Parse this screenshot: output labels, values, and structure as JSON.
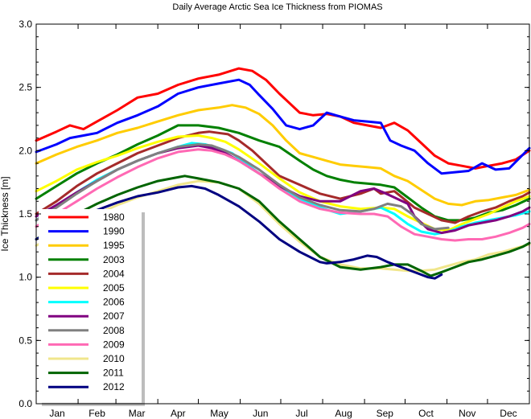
{
  "chart_data": {
    "type": "line",
    "title": "Daily Average Arctic Sea Ice Thickness from PIOMAS",
    "xlabel": "",
    "ylabel": "Ice Thickness  [m]",
    "xlim": [
      0,
      365
    ],
    "ylim": [
      0.0,
      3.0
    ],
    "yticks": [
      0.0,
      0.5,
      1.0,
      1.5,
      2.0,
      2.5,
      3.0
    ],
    "ytick_labels": [
      "0.0",
      "0.5",
      "1.0",
      "1.5",
      "2.0",
      "2.5",
      "3.0"
    ],
    "month_labels": [
      "Jan",
      "Feb",
      "Mar",
      "Apr",
      "May",
      "Jun",
      "Jul",
      "Aug",
      "Sep",
      "Oct",
      "Nov",
      "Dec"
    ],
    "x_unit": "day of year",
    "grid": false,
    "legend_position": "lower-left",
    "series": [
      {
        "name": "1980",
        "color": "#ff0000",
        "x": [
          0,
          15,
          25,
          35,
          45,
          60,
          75,
          90,
          105,
          120,
          135,
          150,
          160,
          170,
          180,
          195,
          205,
          215,
          225,
          235,
          245,
          255,
          265,
          275,
          285,
          295,
          305,
          315,
          325,
          335,
          345,
          355,
          365
        ],
        "y": [
          2.08,
          2.15,
          2.2,
          2.17,
          2.23,
          2.32,
          2.42,
          2.45,
          2.52,
          2.57,
          2.6,
          2.65,
          2.63,
          2.56,
          2.45,
          2.3,
          2.28,
          2.29,
          2.27,
          2.22,
          2.2,
          2.18,
          2.22,
          2.16,
          2.06,
          1.96,
          1.9,
          1.88,
          1.86,
          1.88,
          1.9,
          1.93,
          2.0
        ]
      },
      {
        "name": "1990",
        "color": "#0000ff",
        "x": [
          0,
          15,
          25,
          35,
          45,
          60,
          75,
          90,
          105,
          120,
          135,
          150,
          158,
          165,
          175,
          185,
          195,
          205,
          215,
          225,
          235,
          245,
          255,
          262,
          270,
          280,
          290,
          300,
          310,
          320,
          330,
          340,
          350,
          365
        ],
        "y": [
          1.99,
          2.05,
          2.1,
          2.12,
          2.14,
          2.22,
          2.28,
          2.35,
          2.45,
          2.5,
          2.53,
          2.56,
          2.52,
          2.44,
          2.33,
          2.2,
          2.17,
          2.2,
          2.3,
          2.27,
          2.24,
          2.23,
          2.22,
          2.08,
          2.04,
          2.0,
          1.9,
          1.82,
          1.83,
          1.84,
          1.9,
          1.85,
          1.86,
          2.02
        ]
      },
      {
        "name": "1995",
        "color": "#ffcc00",
        "x": [
          0,
          15,
          30,
          45,
          60,
          75,
          90,
          105,
          120,
          135,
          145,
          155,
          165,
          175,
          185,
          195,
          205,
          215,
          225,
          235,
          245,
          255,
          265,
          275,
          285,
          295,
          305,
          315,
          325,
          335,
          345,
          355,
          365
        ],
        "y": [
          1.9,
          1.97,
          2.03,
          2.08,
          2.14,
          2.18,
          2.23,
          2.28,
          2.32,
          2.34,
          2.36,
          2.34,
          2.29,
          2.2,
          2.08,
          1.98,
          1.95,
          1.92,
          1.89,
          1.88,
          1.87,
          1.86,
          1.8,
          1.76,
          1.69,
          1.62,
          1.58,
          1.57,
          1.6,
          1.61,
          1.63,
          1.65,
          1.69
        ]
      },
      {
        "name": "2003",
        "color": "#008000",
        "x": [
          0,
          15,
          30,
          45,
          60,
          75,
          90,
          105,
          120,
          135,
          150,
          165,
          180,
          195,
          205,
          215,
          225,
          235,
          245,
          255,
          265,
          275,
          285,
          295,
          305,
          315,
          325,
          335,
          345,
          355,
          365
        ],
        "y": [
          1.62,
          1.72,
          1.82,
          1.9,
          1.97,
          2.05,
          2.12,
          2.2,
          2.2,
          2.18,
          2.14,
          2.08,
          2.03,
          1.92,
          1.85,
          1.8,
          1.77,
          1.75,
          1.74,
          1.73,
          1.71,
          1.63,
          1.55,
          1.48,
          1.45,
          1.45,
          1.47,
          1.51,
          1.53,
          1.57,
          1.62
        ]
      },
      {
        "name": "2004",
        "color": "#a52a2a",
        "x": [
          0,
          15,
          30,
          45,
          60,
          75,
          90,
          105,
          120,
          128,
          135,
          142,
          150,
          160,
          170,
          180,
          195,
          210,
          225,
          240,
          250,
          255,
          265,
          272,
          280,
          290,
          300,
          310,
          320,
          330,
          340,
          350,
          360,
          365
        ],
        "y": [
          1.5,
          1.6,
          1.72,
          1.82,
          1.9,
          1.98,
          2.04,
          2.1,
          2.14,
          2.15,
          2.14,
          2.13,
          2.08,
          2.0,
          1.9,
          1.8,
          1.73,
          1.66,
          1.62,
          1.66,
          1.7,
          1.66,
          1.68,
          1.62,
          1.55,
          1.5,
          1.45,
          1.43,
          1.48,
          1.52,
          1.55,
          1.6,
          1.64,
          1.67
        ]
      },
      {
        "name": "2005",
        "color": "#ffff00",
        "x": [
          0,
          15,
          30,
          45,
          60,
          75,
          90,
          105,
          120,
          130,
          140,
          150,
          165,
          180,
          195,
          210,
          225,
          240,
          255,
          265,
          275,
          285,
          295,
          305,
          315,
          325,
          335,
          345,
          355,
          365
        ],
        "y": [
          1.68,
          1.76,
          1.85,
          1.91,
          1.96,
          2.02,
          2.07,
          2.11,
          2.12,
          2.1,
          2.07,
          2.01,
          1.9,
          1.78,
          1.67,
          1.6,
          1.56,
          1.54,
          1.55,
          1.54,
          1.48,
          1.43,
          1.38,
          1.37,
          1.42,
          1.46,
          1.5,
          1.55,
          1.6,
          1.64
        ]
      },
      {
        "name": "2006",
        "color": "#00ffff",
        "x": [
          0,
          15,
          30,
          45,
          60,
          75,
          90,
          105,
          115,
          125,
          135,
          145,
          155,
          165,
          180,
          195,
          210,
          225,
          240,
          255,
          265,
          275,
          285,
          295,
          305,
          315,
          325,
          335,
          345,
          355,
          365
        ],
        "y": [
          1.45,
          1.56,
          1.67,
          1.77,
          1.85,
          1.92,
          1.98,
          2.03,
          2.06,
          2.05,
          2.02,
          1.98,
          1.9,
          1.82,
          1.72,
          1.62,
          1.55,
          1.5,
          1.52,
          1.55,
          1.5,
          1.42,
          1.36,
          1.34,
          1.36,
          1.4,
          1.43,
          1.45,
          1.47,
          1.49,
          1.52
        ]
      },
      {
        "name": "2007",
        "color": "#800080",
        "x": [
          0,
          15,
          30,
          45,
          60,
          75,
          90,
          105,
          120,
          130,
          140,
          150,
          165,
          180,
          195,
          210,
          225,
          240,
          250,
          257,
          265,
          275,
          280,
          290,
          300,
          310,
          320,
          330,
          340,
          350,
          360,
          365
        ],
        "y": [
          1.48,
          1.57,
          1.67,
          1.76,
          1.85,
          1.92,
          1.98,
          2.02,
          2.04,
          2.02,
          1.98,
          1.92,
          1.82,
          1.72,
          1.64,
          1.6,
          1.6,
          1.68,
          1.7,
          1.67,
          1.63,
          1.58,
          1.48,
          1.38,
          1.35,
          1.37,
          1.41,
          1.43,
          1.45,
          1.48,
          1.52,
          1.55
        ]
      },
      {
        "name": "2008",
        "color": "#808080",
        "x": [
          0,
          15,
          30,
          45,
          60,
          75,
          90,
          105,
          120,
          130,
          140,
          150,
          165,
          180,
          195,
          210,
          225,
          240,
          250,
          260,
          270,
          278,
          285,
          295,
          305
        ],
        "y": [
          1.45,
          1.55,
          1.66,
          1.76,
          1.85,
          1.92,
          1.98,
          2.03,
          2.05,
          2.04,
          2.0,
          1.95,
          1.85,
          1.73,
          1.63,
          1.57,
          1.53,
          1.52,
          1.54,
          1.58,
          1.56,
          1.5,
          1.42,
          1.38,
          1.39
        ]
      },
      {
        "name": "2009",
        "color": "#ff69b4",
        "x": [
          0,
          15,
          30,
          45,
          60,
          75,
          90,
          105,
          120,
          130,
          140,
          150,
          165,
          180,
          195,
          210,
          225,
          240,
          250,
          260,
          270,
          280,
          290,
          300,
          310,
          320,
          330,
          340,
          350,
          360,
          365
        ],
        "y": [
          1.4,
          1.5,
          1.6,
          1.7,
          1.79,
          1.87,
          1.94,
          1.99,
          2.01,
          2.0,
          1.97,
          1.92,
          1.82,
          1.7,
          1.6,
          1.54,
          1.51,
          1.5,
          1.5,
          1.48,
          1.4,
          1.34,
          1.32,
          1.3,
          1.29,
          1.3,
          1.3,
          1.32,
          1.35,
          1.39,
          1.42
        ]
      },
      {
        "name": "2010",
        "color": "#f0e68c",
        "x": [
          0,
          15,
          30,
          45,
          60,
          75,
          90,
          105,
          120,
          135,
          150,
          165,
          180,
          195,
          210,
          225,
          240,
          255,
          265,
          275,
          285,
          295,
          305,
          315,
          325,
          335,
          345,
          355,
          365
        ],
        "y": [
          1.25,
          1.33,
          1.42,
          1.5,
          1.57,
          1.63,
          1.68,
          1.73,
          1.76,
          1.75,
          1.7,
          1.58,
          1.42,
          1.28,
          1.16,
          1.1,
          1.07,
          1.07,
          1.06,
          1.05,
          1.05,
          1.06,
          1.09,
          1.12,
          1.14,
          1.18,
          1.2,
          1.23,
          1.26
        ]
      },
      {
        "name": "2011",
        "color": "#006400",
        "x": [
          0,
          15,
          30,
          45,
          60,
          75,
          90,
          105,
          110,
          120,
          135,
          150,
          165,
          180,
          195,
          210,
          225,
          240,
          255,
          265,
          275,
          285,
          292,
          300,
          310,
          320,
          330,
          340,
          350,
          360,
          365
        ],
        "y": [
          1.3,
          1.4,
          1.5,
          1.58,
          1.65,
          1.71,
          1.76,
          1.79,
          1.8,
          1.78,
          1.75,
          1.7,
          1.6,
          1.44,
          1.3,
          1.16,
          1.08,
          1.06,
          1.08,
          1.1,
          1.1,
          1.05,
          1.01,
          1.04,
          1.08,
          1.12,
          1.14,
          1.17,
          1.2,
          1.24,
          1.27
        ]
      },
      {
        "name": "2012",
        "color": "#000080",
        "x": [
          0,
          15,
          30,
          45,
          60,
          75,
          90,
          105,
          115,
          125,
          135,
          150,
          165,
          180,
          195,
          210,
          215,
          225,
          235,
          245,
          252,
          260,
          270,
          280,
          290,
          295,
          300
        ],
        "y": [
          1.3,
          1.38,
          1.46,
          1.53,
          1.59,
          1.64,
          1.67,
          1.71,
          1.72,
          1.7,
          1.65,
          1.56,
          1.44,
          1.3,
          1.2,
          1.12,
          1.11,
          1.12,
          1.14,
          1.17,
          1.16,
          1.12,
          1.08,
          1.04,
          1.0,
          0.99,
          1.02
        ]
      }
    ]
  }
}
